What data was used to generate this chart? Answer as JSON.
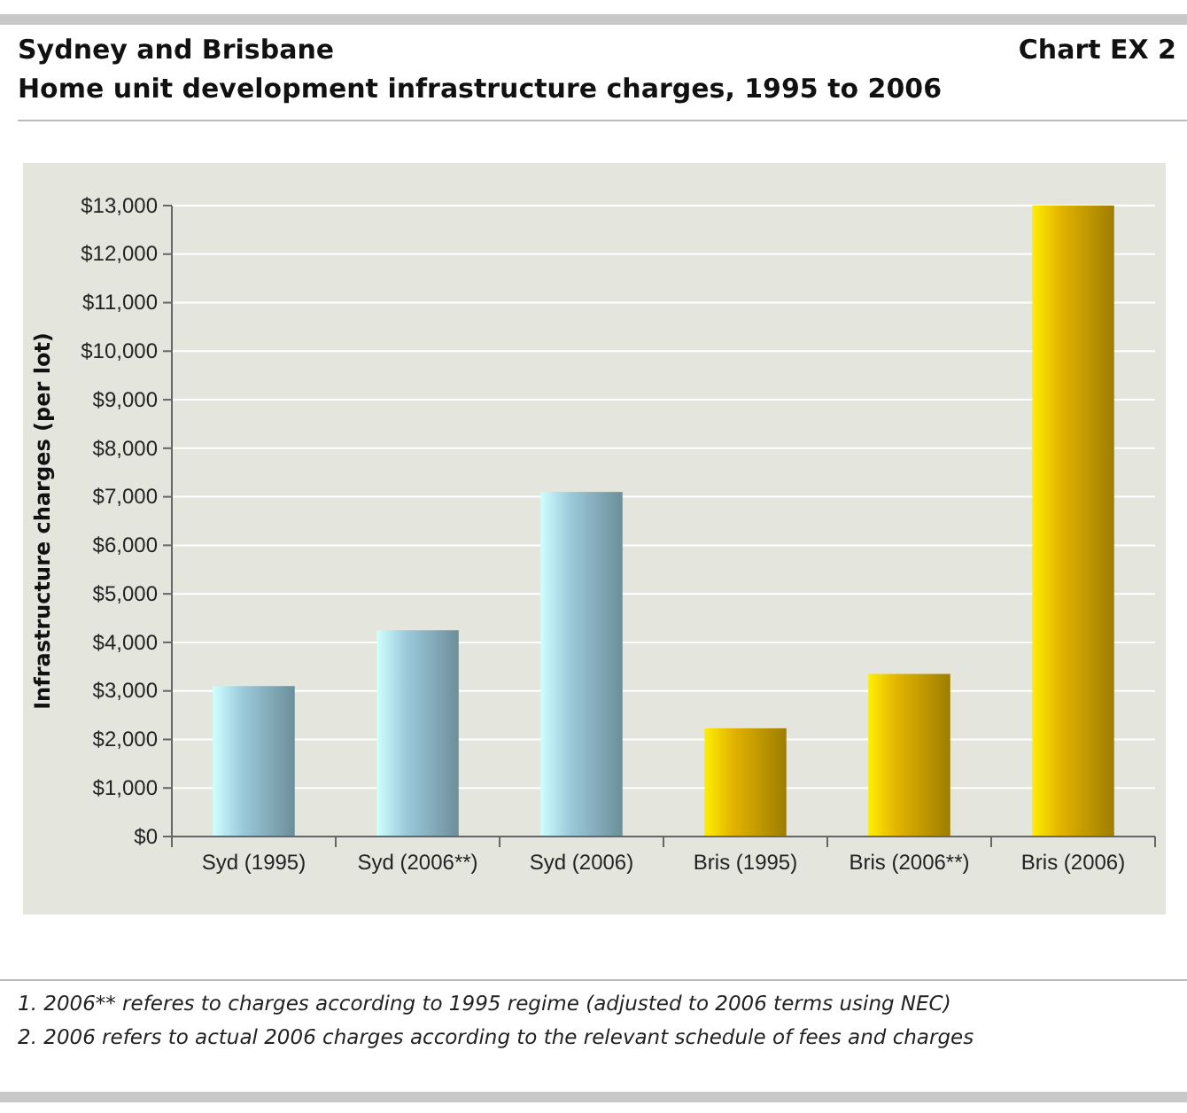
{
  "chart_data": {
    "type": "bar",
    "title": "Sydney and Brisbane",
    "subtitle": "Home unit development infrastructure charges, 1995 to 2006",
    "annotations": [
      "Chart EX 2",
      "1. 2006** referes to charges according to 1995 regime (adjusted to 2006 terms using NEC)",
      "2. 2006 refers to actual 2006 charges according to the relevant schedule of fees and charges"
    ],
    "ylabel": "Infrastructure charges (per lot)",
    "categories": [
      "Syd (1995)",
      "Syd (2006**)",
      "Syd (2006)",
      "Bris (1995)",
      "Bris (2006**)",
      "Bris (2006)"
    ],
    "values": [
      3100,
      4250,
      7100,
      2230,
      3350,
      13000
    ],
    "colors": [
      "#9ccbdc",
      "#9ccbdc",
      "#9ccbdc",
      "#e2b300",
      "#e2b300",
      "#e2b300"
    ],
    "ylim": [
      0,
      13000
    ],
    "yticks": [
      {
        "value": 0,
        "label": "$0"
      },
      {
        "value": 1000,
        "label": "$1,000"
      },
      {
        "value": 2000,
        "label": "$2,000"
      },
      {
        "value": 3000,
        "label": "$3,000"
      },
      {
        "value": 4000,
        "label": "$4,000"
      },
      {
        "value": 5000,
        "label": "$5,000"
      },
      {
        "value": 6000,
        "label": "$6,000"
      },
      {
        "value": 7000,
        "label": "$7,000"
      },
      {
        "value": 8000,
        "label": "$8,000"
      },
      {
        "value": 9000,
        "label": "$9,000"
      },
      {
        "value": 10000,
        "label": "$10,000"
      },
      {
        "value": 11000,
        "label": "$11,000"
      },
      {
        "value": 12000,
        "label": "$12,000"
      },
      {
        "value": 13000,
        "label": "$13,000"
      }
    ],
    "grid": "y"
  }
}
